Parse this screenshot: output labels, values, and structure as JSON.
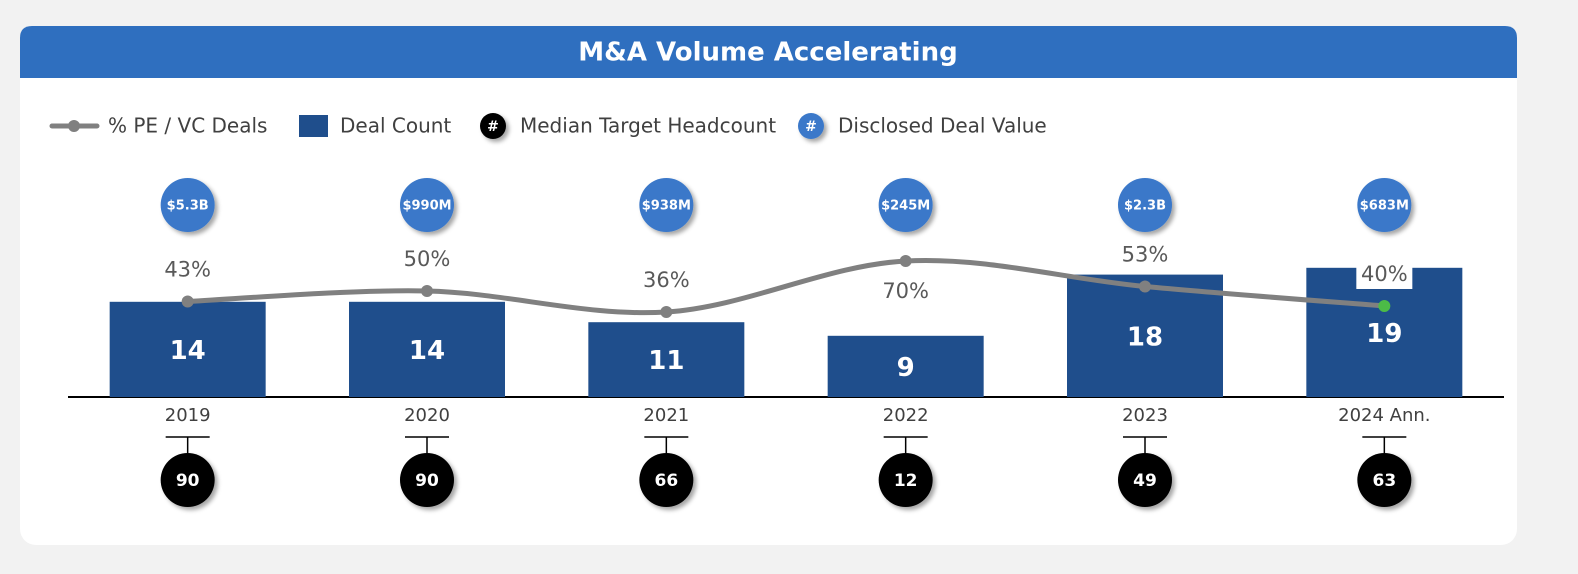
{
  "chart_data": {
    "type": "bar",
    "title": "M&A Volume Accelerating",
    "categories": [
      "2019",
      "2020",
      "2021",
      "2022",
      "2023",
      "2024 Ann."
    ],
    "series": [
      {
        "name": "% PE / VC Deals",
        "type": "line",
        "axis": "y2",
        "color": "#808080",
        "values": [
          43,
          50,
          36,
          70,
          53,
          40
        ],
        "value_labels": [
          "43%",
          "50%",
          "36%",
          "70%",
          "53%",
          "40%"
        ]
      },
      {
        "name": "Deal Count",
        "type": "bar",
        "color": "#1f4e8c",
        "values": [
          14,
          14,
          11,
          9,
          18,
          19
        ]
      },
      {
        "name": "Median Target Headcount",
        "type": "bubble",
        "color": "#000000",
        "marker_label": "#",
        "values": [
          90,
          90,
          66,
          12,
          49,
          63
        ]
      },
      {
        "name": "Disclosed Deal Value",
        "type": "bubble",
        "color": "#3a78c9",
        "marker_label": "#",
        "values": [
          5300000000,
          990000000,
          938000000,
          245000000,
          2300000000,
          683000000
        ],
        "value_labels": [
          "$5.3B",
          "$990M",
          "$938M",
          "$245M",
          "$2.3B",
          "$683M"
        ]
      }
    ],
    "ylim": [
      0,
      20
    ],
    "y2lim": [
      0,
      100
    ],
    "highlight_color": "#4cbb47"
  }
}
